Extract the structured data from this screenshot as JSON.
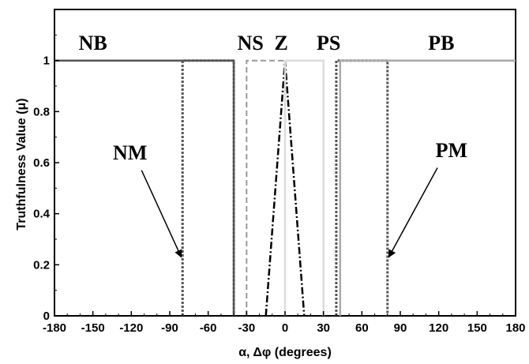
{
  "chart_data": {
    "type": "line",
    "title": "",
    "xlabel": "α, Δφ  (degrees)",
    "ylabel": "Truthfulness Value (μ)",
    "xlim": [
      -180,
      180
    ],
    "ylim": [
      0,
      1.2
    ],
    "xticks": [
      -180,
      -150,
      -120,
      -90,
      -60,
      -30,
      0,
      30,
      60,
      90,
      120,
      150,
      180
    ],
    "xtick_labels": [
      "-180",
      "-150",
      "-120",
      "-90",
      "-60",
      "-30",
      "0",
      "30",
      "60",
      "90",
      "120",
      "150",
      "180"
    ],
    "yticks": [
      0,
      0.2,
      0.4,
      0.6,
      0.8,
      1
    ],
    "ytick_labels": [
      "0",
      "0.2",
      "0.4",
      "0.6",
      "0.8",
      "1"
    ],
    "grid": false,
    "legend": "none",
    "series": [
      {
        "name": "NB",
        "style": "solid",
        "color": "#555555",
        "x": [
          -180,
          -40,
          -40
        ],
        "y": [
          1,
          1,
          0
        ]
      },
      {
        "name": "NM",
        "style": "dotted",
        "color": "#555555",
        "x": [
          -80,
          -80,
          -40,
          -40
        ],
        "y": [
          0,
          1,
          1,
          0
        ]
      },
      {
        "name": "NS",
        "style": "dashed",
        "color": "#999999",
        "x": [
          -30,
          -30,
          0,
          0
        ],
        "y": [
          0,
          1,
          1,
          0
        ]
      },
      {
        "name": "Z",
        "style": "dashdot",
        "color": "#000000",
        "x": [
          -15,
          0,
          15
        ],
        "y": [
          0,
          1,
          0
        ]
      },
      {
        "name": "PS",
        "style": "solid",
        "color": "#dddddd",
        "x": [
          30,
          30,
          0,
          0
        ],
        "y": [
          0,
          1,
          1,
          0
        ]
      },
      {
        "name": "PM",
        "style": "dotted",
        "color": "#555555",
        "x": [
          40,
          40,
          80,
          80
        ],
        "y": [
          0,
          1,
          1,
          0
        ]
      },
      {
        "name": "PB",
        "style": "solid",
        "color": "#aaaaaa",
        "x": [
          43,
          43,
          180
        ],
        "y": [
          0,
          1,
          1
        ]
      }
    ],
    "annotations": [
      {
        "text": "NB",
        "x": -150,
        "y": 1.07
      },
      {
        "text": "NS",
        "x": -27,
        "y": 1.07
      },
      {
        "text": "Z",
        "x": -3,
        "y": 1.07
      },
      {
        "text": "PS",
        "x": 34,
        "y": 1.07
      },
      {
        "text": "PB",
        "x": 122,
        "y": 1.07
      },
      {
        "text": "NM",
        "x": -121,
        "y": 0.64
      },
      {
        "text": "PM",
        "x": 130,
        "y": 0.65
      }
    ],
    "arrows": [
      {
        "label": "NM",
        "from": [
          -112,
          0.57
        ],
        "to": [
          -81,
          0.23
        ]
      },
      {
        "label": "PM",
        "from": [
          119,
          0.58
        ],
        "to": [
          81,
          0.23
        ]
      }
    ]
  }
}
